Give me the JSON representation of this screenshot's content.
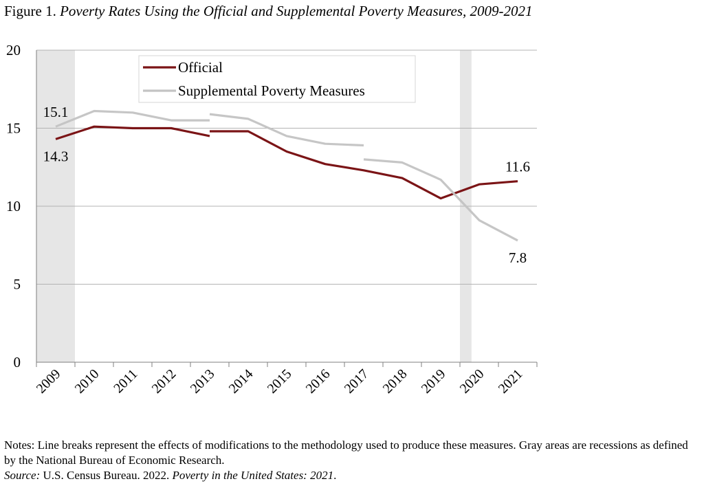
{
  "figure": {
    "label": "Figure 1.",
    "title": "Poverty Rates Using the Official and Supplemental Poverty Measures, 2009-2021"
  },
  "chart_data": {
    "type": "line",
    "categories": [
      "2009",
      "2010",
      "2011",
      "2012",
      "2013",
      "2014",
      "2015",
      "2016",
      "2017",
      "2018",
      "2019",
      "2020",
      "2021"
    ],
    "ylim": [
      0,
      20
    ],
    "yticks": [
      0,
      5,
      10,
      15,
      20
    ],
    "grid": true,
    "legend_position": "top-center",
    "recessions": [
      {
        "start": 2009.0,
        "end": 2010.0
      },
      {
        "start": 2020.0,
        "end": 2020.3
      }
    ],
    "series": [
      {
        "name": "Official",
        "color": "#7b1416",
        "segments": [
          [
            [
              2009,
              14.3
            ],
            [
              2010,
              15.1
            ],
            [
              2011,
              15.0
            ],
            [
              2012,
              15.0
            ],
            [
              2013,
              14.5
            ]
          ],
          [
            [
              2013,
              14.8
            ],
            [
              2014,
              14.8
            ],
            [
              2015,
              13.5
            ],
            [
              2016,
              12.7
            ],
            [
              2017,
              12.3
            ],
            [
              2018,
              11.8
            ],
            [
              2019,
              10.5
            ],
            [
              2020,
              11.4
            ],
            [
              2021,
              11.6
            ]
          ]
        ]
      },
      {
        "name": "Supplemental Poverty Measures",
        "color": "#c3c3c3",
        "segments": [
          [
            [
              2009,
              15.1
            ],
            [
              2010,
              16.1
            ],
            [
              2011,
              16.0
            ],
            [
              2012,
              15.5
            ],
            [
              2013,
              15.5
            ]
          ],
          [
            [
              2013,
              15.9
            ],
            [
              2014,
              15.6
            ],
            [
              2015,
              14.5
            ],
            [
              2016,
              14.0
            ],
            [
              2017,
              13.9
            ]
          ],
          [
            [
              2017,
              13.0
            ],
            [
              2018,
              12.8
            ],
            [
              2019,
              11.7
            ],
            [
              2020,
              9.1
            ],
            [
              2021,
              7.8
            ]
          ]
        ]
      }
    ],
    "annotations": [
      {
        "text": "15.1",
        "series": 1,
        "year": 2009,
        "value": 15.1,
        "pos": "above"
      },
      {
        "text": "14.3",
        "series": 0,
        "year": 2009,
        "value": 14.3,
        "pos": "below"
      },
      {
        "text": "11.6",
        "series": 0,
        "year": 2021,
        "value": 11.6,
        "pos": "above"
      },
      {
        "text": "7.8",
        "series": 1,
        "year": 2021,
        "value": 7.8,
        "pos": "below"
      }
    ]
  },
  "notes": {
    "text": "Notes: Line breaks represent the effects of modifications to the methodology used to produce these measures.  Gray areas are recessions as defined by the National Bureau of Economic Research.",
    "source_label": "Source:",
    "source_text": " U.S. Census Bureau. 2022. ",
    "source_title": "Poverty in the United States: 2021",
    "source_end": "."
  }
}
